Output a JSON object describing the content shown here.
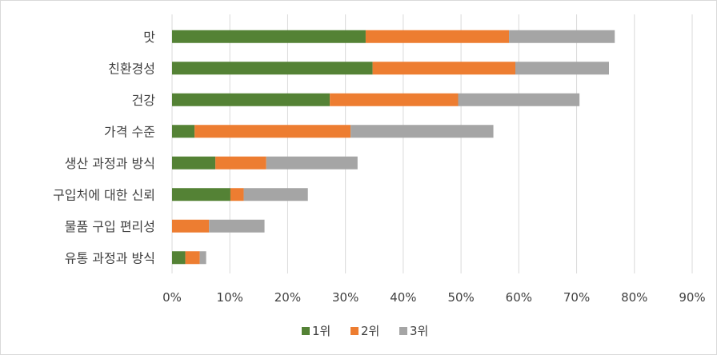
{
  "chart_data": {
    "type": "bar",
    "orientation": "horizontal",
    "stacked": true,
    "categories": [
      "맛",
      "친환경성",
      "건강",
      "가격 수준",
      "생산 과정과 방식",
      "구입처에 대한 신뢰",
      "물품 구입 편리성",
      "유통 과정과 방식"
    ],
    "series": [
      {
        "name": "1위",
        "color": "#548235",
        "values": [
          33.5,
          34.7,
          27.3,
          3.9,
          7.5,
          10.1,
          0.0,
          2.3
        ]
      },
      {
        "name": "2위",
        "color": "#ed7d31",
        "values": [
          24.8,
          24.7,
          22.2,
          27.0,
          8.8,
          2.3,
          6.4,
          2.5
        ]
      },
      {
        "name": "3위",
        "color": "#a5a5a5",
        "values": [
          18.3,
          16.2,
          21.0,
          24.7,
          15.8,
          11.1,
          9.6,
          1.1
        ]
      }
    ],
    "xlim": [
      0,
      90
    ],
    "xticks": [
      "0%",
      "10%",
      "20%",
      "30%",
      "40%",
      "50%",
      "60%",
      "70%",
      "80%",
      "90%"
    ],
    "grid": true,
    "legend_position": "bottom"
  }
}
